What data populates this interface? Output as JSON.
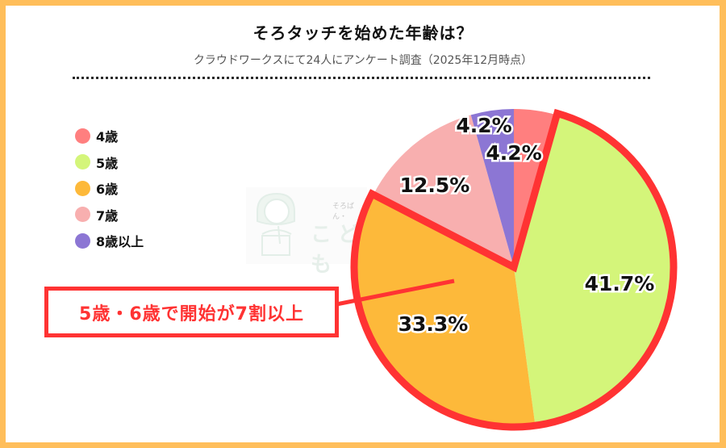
{
  "header": {
    "title": "そろタッチを始めた年齢は？",
    "subtitle": "クラウドワークスにて24人にアンケート調査（2025年12月時点）"
  },
  "legend": [
    {
      "label": "4歳",
      "color": "#FF7F7F"
    },
    {
      "label": "5歳",
      "color": "#D4F57A"
    },
    {
      "label": "6歳",
      "color": "#FDB93A"
    },
    {
      "label": "7歳",
      "color": "#F8AFAF"
    },
    {
      "label": "8歳以上",
      "color": "#8C76D4"
    }
  ],
  "watermark": {
    "small_text": "そろばん・",
    "large_text": "こども"
  },
  "callout": {
    "text": "5歳・6歳で開始が7割以上",
    "color": "#FF3333"
  },
  "chart_data": {
    "type": "pie",
    "title": "そろタッチを始めた年齢は？",
    "subtitle": "クラウドワークスにて24人にアンケート調査（2025年12月時点）",
    "categories": [
      "4歳",
      "5歳",
      "6歳",
      "7歳",
      "8歳以上"
    ],
    "values": [
      4.2,
      41.7,
      33.3,
      12.5,
      4.2
    ],
    "value_labels": [
      "4.2%",
      "41.7%",
      "33.3%",
      "12.5%",
      "4.2%"
    ],
    "colors": [
      "#FF7F7F",
      "#D4F57A",
      "#FDB93A",
      "#F8AFAF",
      "#8C76D4"
    ],
    "start_angle": "top, clockwise",
    "legend_position": "left",
    "highlight": {
      "categories": [
        "5歳",
        "6歳"
      ],
      "outline_color": "#FF3333",
      "annotation": "5歳・6歳で開始が7割以上"
    },
    "sample_size": 24
  }
}
